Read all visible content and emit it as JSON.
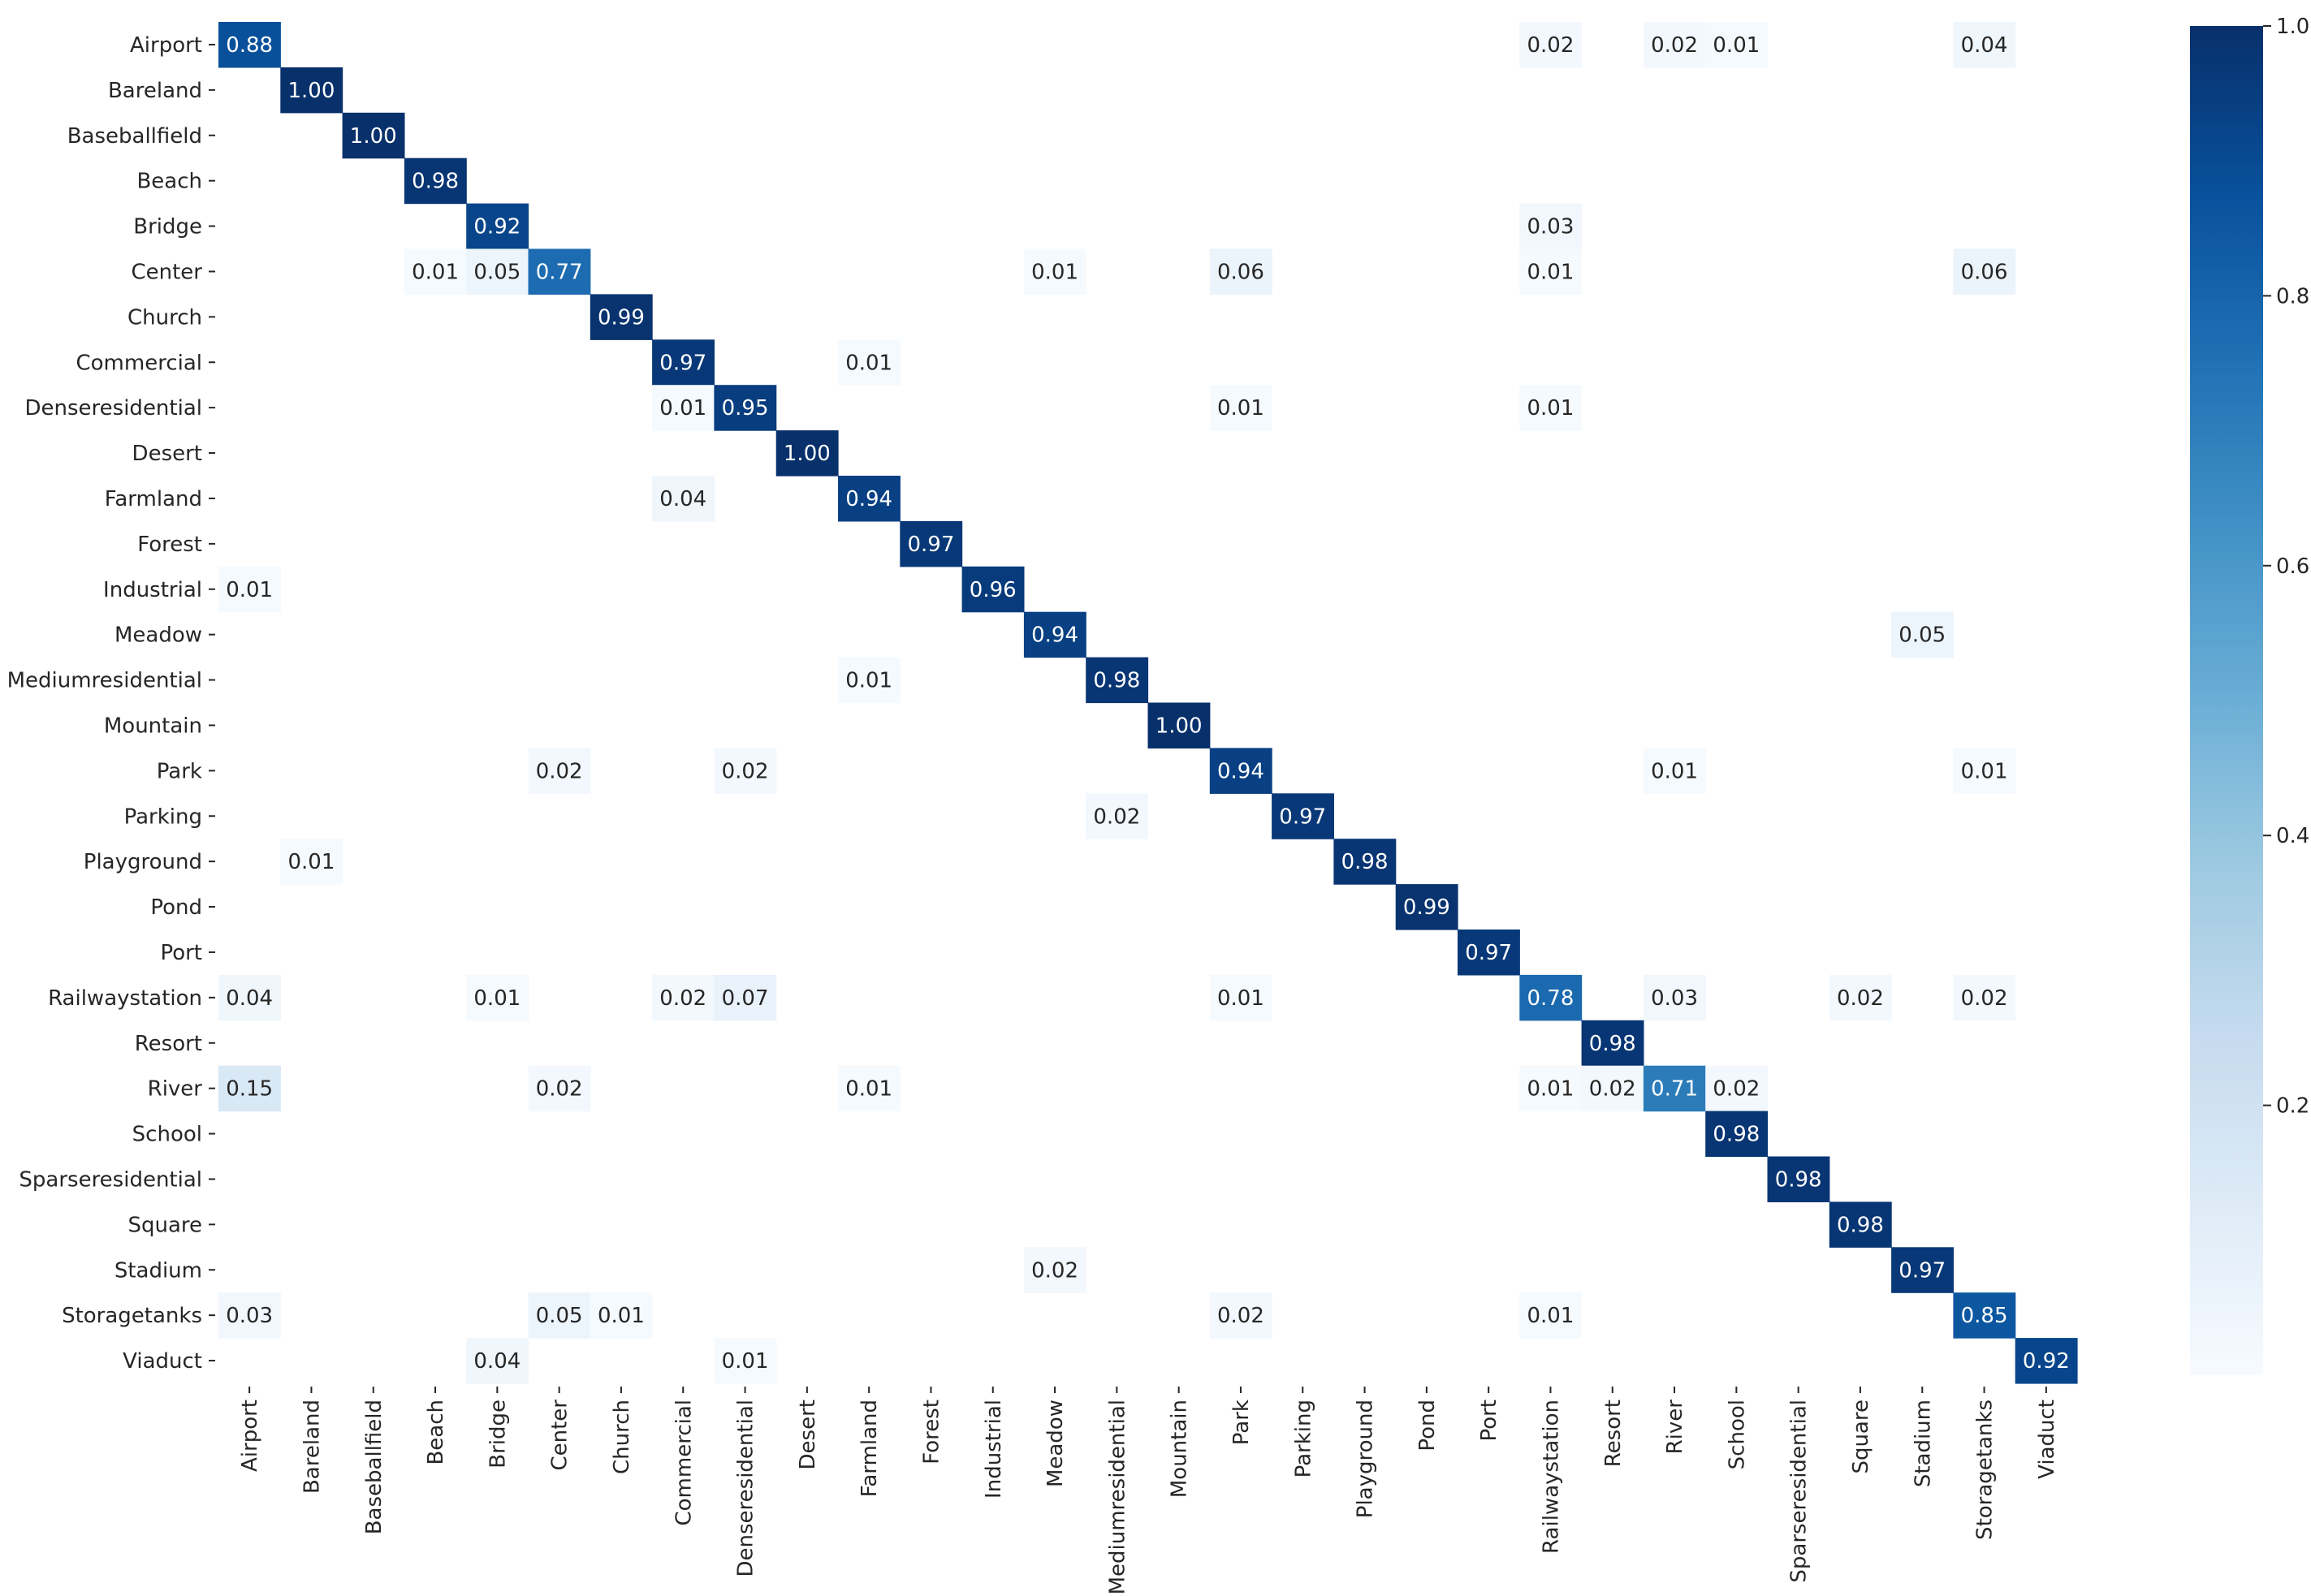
{
  "chart_data": {
    "type": "heatmap",
    "title": "",
    "xlabel": "",
    "ylabel": "",
    "labels": [
      "Airport",
      "Bareland",
      "Baseballfield",
      "Beach",
      "Bridge",
      "Center",
      "Church",
      "Commercial",
      "Denseresidential",
      "Desert",
      "Farmland",
      "Forest",
      "Industrial",
      "Meadow",
      "Mediumresidential",
      "Mountain",
      "Park",
      "Parking",
      "Playground",
      "Pond",
      "Port",
      "Railwaystation",
      "Resort",
      "River",
      "School",
      "Sparseresidential",
      "Square",
      "Stadium",
      "Storagetanks",
      "Viaduct"
    ],
    "cells": [
      {
        "row": 0,
        "col": 0,
        "value": 0.88,
        "text": "0.88"
      },
      {
        "row": 0,
        "col": 21,
        "value": 0.02,
        "text": "0.02"
      },
      {
        "row": 0,
        "col": 23,
        "value": 0.02,
        "text": "0.02"
      },
      {
        "row": 0,
        "col": 24,
        "value": 0.01,
        "text": "0.01"
      },
      {
        "row": 0,
        "col": 28,
        "value": 0.04,
        "text": "0.04"
      },
      {
        "row": 1,
        "col": 1,
        "value": 1.0,
        "text": "1.00"
      },
      {
        "row": 2,
        "col": 2,
        "value": 1.0,
        "text": "1.00"
      },
      {
        "row": 3,
        "col": 3,
        "value": 0.98,
        "text": "0.98"
      },
      {
        "row": 4,
        "col": 4,
        "value": 0.92,
        "text": "0.92"
      },
      {
        "row": 4,
        "col": 21,
        "value": 0.03,
        "text": "0.03"
      },
      {
        "row": 5,
        "col": 3,
        "value": 0.01,
        "text": "0.01"
      },
      {
        "row": 5,
        "col": 4,
        "value": 0.05,
        "text": "0.05"
      },
      {
        "row": 5,
        "col": 5,
        "value": 0.77,
        "text": "0.77"
      },
      {
        "row": 5,
        "col": 13,
        "value": 0.01,
        "text": "0.01"
      },
      {
        "row": 5,
        "col": 16,
        "value": 0.06,
        "text": "0.06"
      },
      {
        "row": 5,
        "col": 21,
        "value": 0.01,
        "text": "0.01"
      },
      {
        "row": 5,
        "col": 28,
        "value": 0.06,
        "text": "0.06"
      },
      {
        "row": 6,
        "col": 6,
        "value": 0.99,
        "text": "0.99"
      },
      {
        "row": 7,
        "col": 7,
        "value": 0.97,
        "text": "0.97"
      },
      {
        "row": 7,
        "col": 10,
        "value": 0.01,
        "text": "0.01"
      },
      {
        "row": 8,
        "col": 7,
        "value": 0.01,
        "text": "0.01"
      },
      {
        "row": 8,
        "col": 8,
        "value": 0.95,
        "text": "0.95"
      },
      {
        "row": 8,
        "col": 16,
        "value": 0.01,
        "text": "0.01"
      },
      {
        "row": 8,
        "col": 21,
        "value": 0.01,
        "text": "0.01"
      },
      {
        "row": 9,
        "col": 9,
        "value": 1.0,
        "text": "1.00"
      },
      {
        "row": 10,
        "col": 7,
        "value": 0.04,
        "text": "0.04"
      },
      {
        "row": 10,
        "col": 10,
        "value": 0.94,
        "text": "0.94"
      },
      {
        "row": 11,
        "col": 11,
        "value": 0.97,
        "text": "0.97"
      },
      {
        "row": 12,
        "col": 0,
        "value": 0.01,
        "text": "0.01"
      },
      {
        "row": 12,
        "col": 12,
        "value": 0.96,
        "text": "0.96"
      },
      {
        "row": 13,
        "col": 13,
        "value": 0.94,
        "text": "0.94"
      },
      {
        "row": 13,
        "col": 27,
        "value": 0.05,
        "text": "0.05"
      },
      {
        "row": 14,
        "col": 10,
        "value": 0.01,
        "text": "0.01"
      },
      {
        "row": 14,
        "col": 14,
        "value": 0.98,
        "text": "0.98"
      },
      {
        "row": 15,
        "col": 15,
        "value": 1.0,
        "text": "1.00"
      },
      {
        "row": 16,
        "col": 5,
        "value": 0.02,
        "text": "0.02"
      },
      {
        "row": 16,
        "col": 8,
        "value": 0.02,
        "text": "0.02"
      },
      {
        "row": 16,
        "col": 16,
        "value": 0.94,
        "text": "0.94"
      },
      {
        "row": 16,
        "col": 23,
        "value": 0.01,
        "text": "0.01"
      },
      {
        "row": 16,
        "col": 28,
        "value": 0.01,
        "text": "0.01"
      },
      {
        "row": 17,
        "col": 14,
        "value": 0.02,
        "text": "0.02"
      },
      {
        "row": 17,
        "col": 17,
        "value": 0.97,
        "text": "0.97"
      },
      {
        "row": 18,
        "col": 1,
        "value": 0.01,
        "text": "0.01"
      },
      {
        "row": 18,
        "col": 18,
        "value": 0.98,
        "text": "0.98"
      },
      {
        "row": 19,
        "col": 19,
        "value": 0.99,
        "text": "0.99"
      },
      {
        "row": 20,
        "col": 20,
        "value": 0.97,
        "text": "0.97"
      },
      {
        "row": 21,
        "col": 0,
        "value": 0.04,
        "text": "0.04"
      },
      {
        "row": 21,
        "col": 4,
        "value": 0.01,
        "text": "0.01"
      },
      {
        "row": 21,
        "col": 7,
        "value": 0.02,
        "text": "0.02"
      },
      {
        "row": 21,
        "col": 8,
        "value": 0.07,
        "text": "0.07"
      },
      {
        "row": 21,
        "col": 16,
        "value": 0.01,
        "text": "0.01"
      },
      {
        "row": 21,
        "col": 21,
        "value": 0.78,
        "text": "0.78"
      },
      {
        "row": 21,
        "col": 23,
        "value": 0.03,
        "text": "0.03"
      },
      {
        "row": 21,
        "col": 26,
        "value": 0.02,
        "text": "0.02"
      },
      {
        "row": 21,
        "col": 28,
        "value": 0.02,
        "text": "0.02"
      },
      {
        "row": 22,
        "col": 22,
        "value": 0.98,
        "text": "0.98"
      },
      {
        "row": 23,
        "col": 0,
        "value": 0.15,
        "text": "0.15"
      },
      {
        "row": 23,
        "col": 5,
        "value": 0.02,
        "text": "0.02"
      },
      {
        "row": 23,
        "col": 10,
        "value": 0.01,
        "text": "0.01"
      },
      {
        "row": 23,
        "col": 21,
        "value": 0.01,
        "text": "0.01"
      },
      {
        "row": 23,
        "col": 22,
        "value": 0.02,
        "text": "0.02"
      },
      {
        "row": 23,
        "col": 23,
        "value": 0.71,
        "text": "0.71"
      },
      {
        "row": 23,
        "col": 24,
        "value": 0.02,
        "text": "0.02"
      },
      {
        "row": 24,
        "col": 24,
        "value": 0.98,
        "text": "0.98"
      },
      {
        "row": 25,
        "col": 25,
        "value": 0.98,
        "text": "0.98"
      },
      {
        "row": 26,
        "col": 26,
        "value": 0.98,
        "text": "0.98"
      },
      {
        "row": 27,
        "col": 13,
        "value": 0.02,
        "text": "0.02"
      },
      {
        "row": 27,
        "col": 27,
        "value": 0.97,
        "text": "0.97"
      },
      {
        "row": 28,
        "col": 0,
        "value": 0.03,
        "text": "0.03"
      },
      {
        "row": 28,
        "col": 5,
        "value": 0.05,
        "text": "0.05"
      },
      {
        "row": 28,
        "col": 6,
        "value": 0.01,
        "text": "0.01"
      },
      {
        "row": 28,
        "col": 16,
        "value": 0.02,
        "text": "0.02"
      },
      {
        "row": 28,
        "col": 21,
        "value": 0.01,
        "text": "0.01"
      },
      {
        "row": 28,
        "col": 28,
        "value": 0.85,
        "text": "0.85"
      },
      {
        "row": 29,
        "col": 4,
        "value": 0.04,
        "text": "0.04"
      },
      {
        "row": 29,
        "col": 8,
        "value": 0.01,
        "text": "0.01"
      },
      {
        "row": 29,
        "col": 29,
        "value": 0.92,
        "text": "0.92"
      }
    ],
    "colorbar": {
      "range": [
        0,
        1
      ],
      "tick_values": [
        0.2,
        0.4,
        0.6,
        0.8,
        1.0
      ],
      "tick_labels": [
        "0.2",
        "0.4",
        "0.6",
        "0.8",
        "1.0"
      ]
    },
    "colormap": "Blues",
    "colormap_stops": [
      "#f7fbff",
      "#deebf7",
      "#c6dbef",
      "#9ecae1",
      "#6baed6",
      "#4292c6",
      "#2171b5",
      "#08519c",
      "#08306b"
    ],
    "grid": false
  }
}
